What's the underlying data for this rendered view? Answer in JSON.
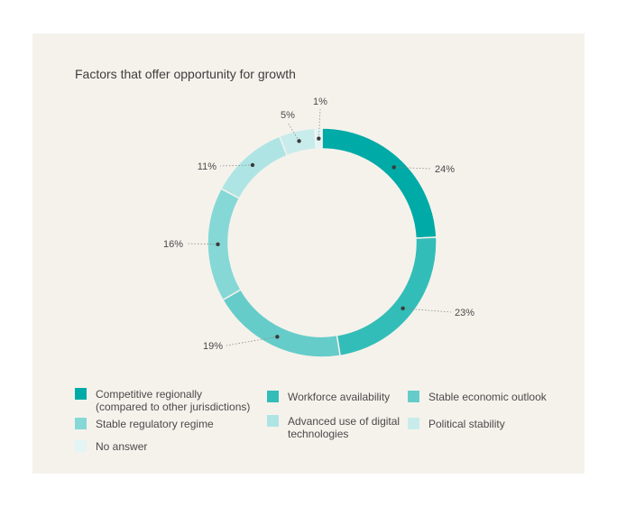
{
  "chart_data": {
    "type": "pie",
    "title": "Factors that offer opportunity for growth",
    "value_suffix": "%",
    "series": [
      {
        "name": "Competitive regionally\n(compared to other jurisdictions)",
        "value": 24,
        "color": "#00aaa6"
      },
      {
        "name": "Workforce availability",
        "value": 23,
        "color": "#33bdb8"
      },
      {
        "name": "Stable economic outlook",
        "value": 19,
        "color": "#66ccca"
      },
      {
        "name": "Stable regulatory regime",
        "value": 16,
        "color": "#85d8d6"
      },
      {
        "name": "Advanced use of digital\ntechnologies",
        "value": 11,
        "color": "#aee5e4"
      },
      {
        "name": "Political stability",
        "value": 5,
        "color": "#c7eceb"
      },
      {
        "name": "No answer",
        "value": 1,
        "color": "#e2f5f4"
      }
    ],
    "legend": "bottom"
  }
}
